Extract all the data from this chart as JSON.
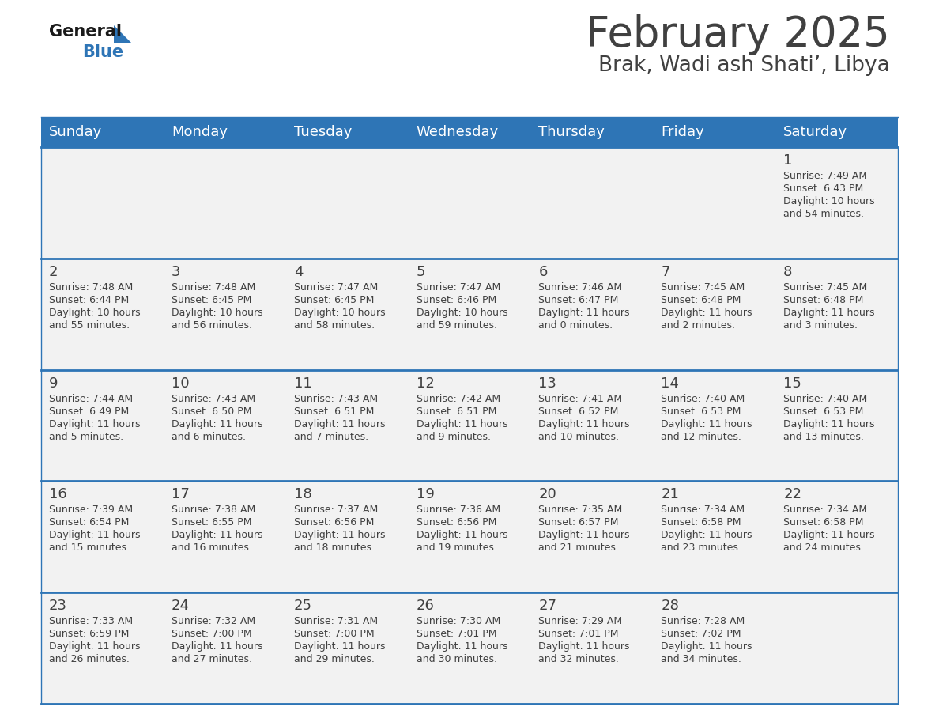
{
  "title": "February 2025",
  "subtitle": "Brak, Wadi ash Shati’, Libya",
  "days_of_week": [
    "Sunday",
    "Monday",
    "Tuesday",
    "Wednesday",
    "Thursday",
    "Friday",
    "Saturday"
  ],
  "header_bg": "#2E75B6",
  "header_text": "#FFFFFF",
  "cell_bg": "#F2F2F2",
  "divider_color": "#2E75B6",
  "text_color": "#404040",
  "title_color": "#404040",
  "subtitle_color": "#404040",
  "logo_general_color": "#1A1A1A",
  "logo_blue_color": "#2E75B6",
  "weeks": [
    [
      {
        "day": null,
        "sunrise": null,
        "sunset": null,
        "daylight": null
      },
      {
        "day": null,
        "sunrise": null,
        "sunset": null,
        "daylight": null
      },
      {
        "day": null,
        "sunrise": null,
        "sunset": null,
        "daylight": null
      },
      {
        "day": null,
        "sunrise": null,
        "sunset": null,
        "daylight": null
      },
      {
        "day": null,
        "sunrise": null,
        "sunset": null,
        "daylight": null
      },
      {
        "day": null,
        "sunrise": null,
        "sunset": null,
        "daylight": null
      },
      {
        "day": 1,
        "sunrise": "7:49 AM",
        "sunset": "6:43 PM",
        "daylight": "10 hours\nand 54 minutes."
      }
    ],
    [
      {
        "day": 2,
        "sunrise": "7:48 AM",
        "sunset": "6:44 PM",
        "daylight": "10 hours\nand 55 minutes."
      },
      {
        "day": 3,
        "sunrise": "7:48 AM",
        "sunset": "6:45 PM",
        "daylight": "10 hours\nand 56 minutes."
      },
      {
        "day": 4,
        "sunrise": "7:47 AM",
        "sunset": "6:45 PM",
        "daylight": "10 hours\nand 58 minutes."
      },
      {
        "day": 5,
        "sunrise": "7:47 AM",
        "sunset": "6:46 PM",
        "daylight": "10 hours\nand 59 minutes."
      },
      {
        "day": 6,
        "sunrise": "7:46 AM",
        "sunset": "6:47 PM",
        "daylight": "11 hours\nand 0 minutes."
      },
      {
        "day": 7,
        "sunrise": "7:45 AM",
        "sunset": "6:48 PM",
        "daylight": "11 hours\nand 2 minutes."
      },
      {
        "day": 8,
        "sunrise": "7:45 AM",
        "sunset": "6:48 PM",
        "daylight": "11 hours\nand 3 minutes."
      }
    ],
    [
      {
        "day": 9,
        "sunrise": "7:44 AM",
        "sunset": "6:49 PM",
        "daylight": "11 hours\nand 5 minutes."
      },
      {
        "day": 10,
        "sunrise": "7:43 AM",
        "sunset": "6:50 PM",
        "daylight": "11 hours\nand 6 minutes."
      },
      {
        "day": 11,
        "sunrise": "7:43 AM",
        "sunset": "6:51 PM",
        "daylight": "11 hours\nand 7 minutes."
      },
      {
        "day": 12,
        "sunrise": "7:42 AM",
        "sunset": "6:51 PM",
        "daylight": "11 hours\nand 9 minutes."
      },
      {
        "day": 13,
        "sunrise": "7:41 AM",
        "sunset": "6:52 PM",
        "daylight": "11 hours\nand 10 minutes."
      },
      {
        "day": 14,
        "sunrise": "7:40 AM",
        "sunset": "6:53 PM",
        "daylight": "11 hours\nand 12 minutes."
      },
      {
        "day": 15,
        "sunrise": "7:40 AM",
        "sunset": "6:53 PM",
        "daylight": "11 hours\nand 13 minutes."
      }
    ],
    [
      {
        "day": 16,
        "sunrise": "7:39 AM",
        "sunset": "6:54 PM",
        "daylight": "11 hours\nand 15 minutes."
      },
      {
        "day": 17,
        "sunrise": "7:38 AM",
        "sunset": "6:55 PM",
        "daylight": "11 hours\nand 16 minutes."
      },
      {
        "day": 18,
        "sunrise": "7:37 AM",
        "sunset": "6:56 PM",
        "daylight": "11 hours\nand 18 minutes."
      },
      {
        "day": 19,
        "sunrise": "7:36 AM",
        "sunset": "6:56 PM",
        "daylight": "11 hours\nand 19 minutes."
      },
      {
        "day": 20,
        "sunrise": "7:35 AM",
        "sunset": "6:57 PM",
        "daylight": "11 hours\nand 21 minutes."
      },
      {
        "day": 21,
        "sunrise": "7:34 AM",
        "sunset": "6:58 PM",
        "daylight": "11 hours\nand 23 minutes."
      },
      {
        "day": 22,
        "sunrise": "7:34 AM",
        "sunset": "6:58 PM",
        "daylight": "11 hours\nand 24 minutes."
      }
    ],
    [
      {
        "day": 23,
        "sunrise": "7:33 AM",
        "sunset": "6:59 PM",
        "daylight": "11 hours\nand 26 minutes."
      },
      {
        "day": 24,
        "sunrise": "7:32 AM",
        "sunset": "7:00 PM",
        "daylight": "11 hours\nand 27 minutes."
      },
      {
        "day": 25,
        "sunrise": "7:31 AM",
        "sunset": "7:00 PM",
        "daylight": "11 hours\nand 29 minutes."
      },
      {
        "day": 26,
        "sunrise": "7:30 AM",
        "sunset": "7:01 PM",
        "daylight": "11 hours\nand 30 minutes."
      },
      {
        "day": 27,
        "sunrise": "7:29 AM",
        "sunset": "7:01 PM",
        "daylight": "11 hours\nand 32 minutes."
      },
      {
        "day": 28,
        "sunrise": "7:28 AM",
        "sunset": "7:02 PM",
        "daylight": "11 hours\nand 34 minutes."
      },
      {
        "day": null,
        "sunrise": null,
        "sunset": null,
        "daylight": null
      }
    ]
  ]
}
